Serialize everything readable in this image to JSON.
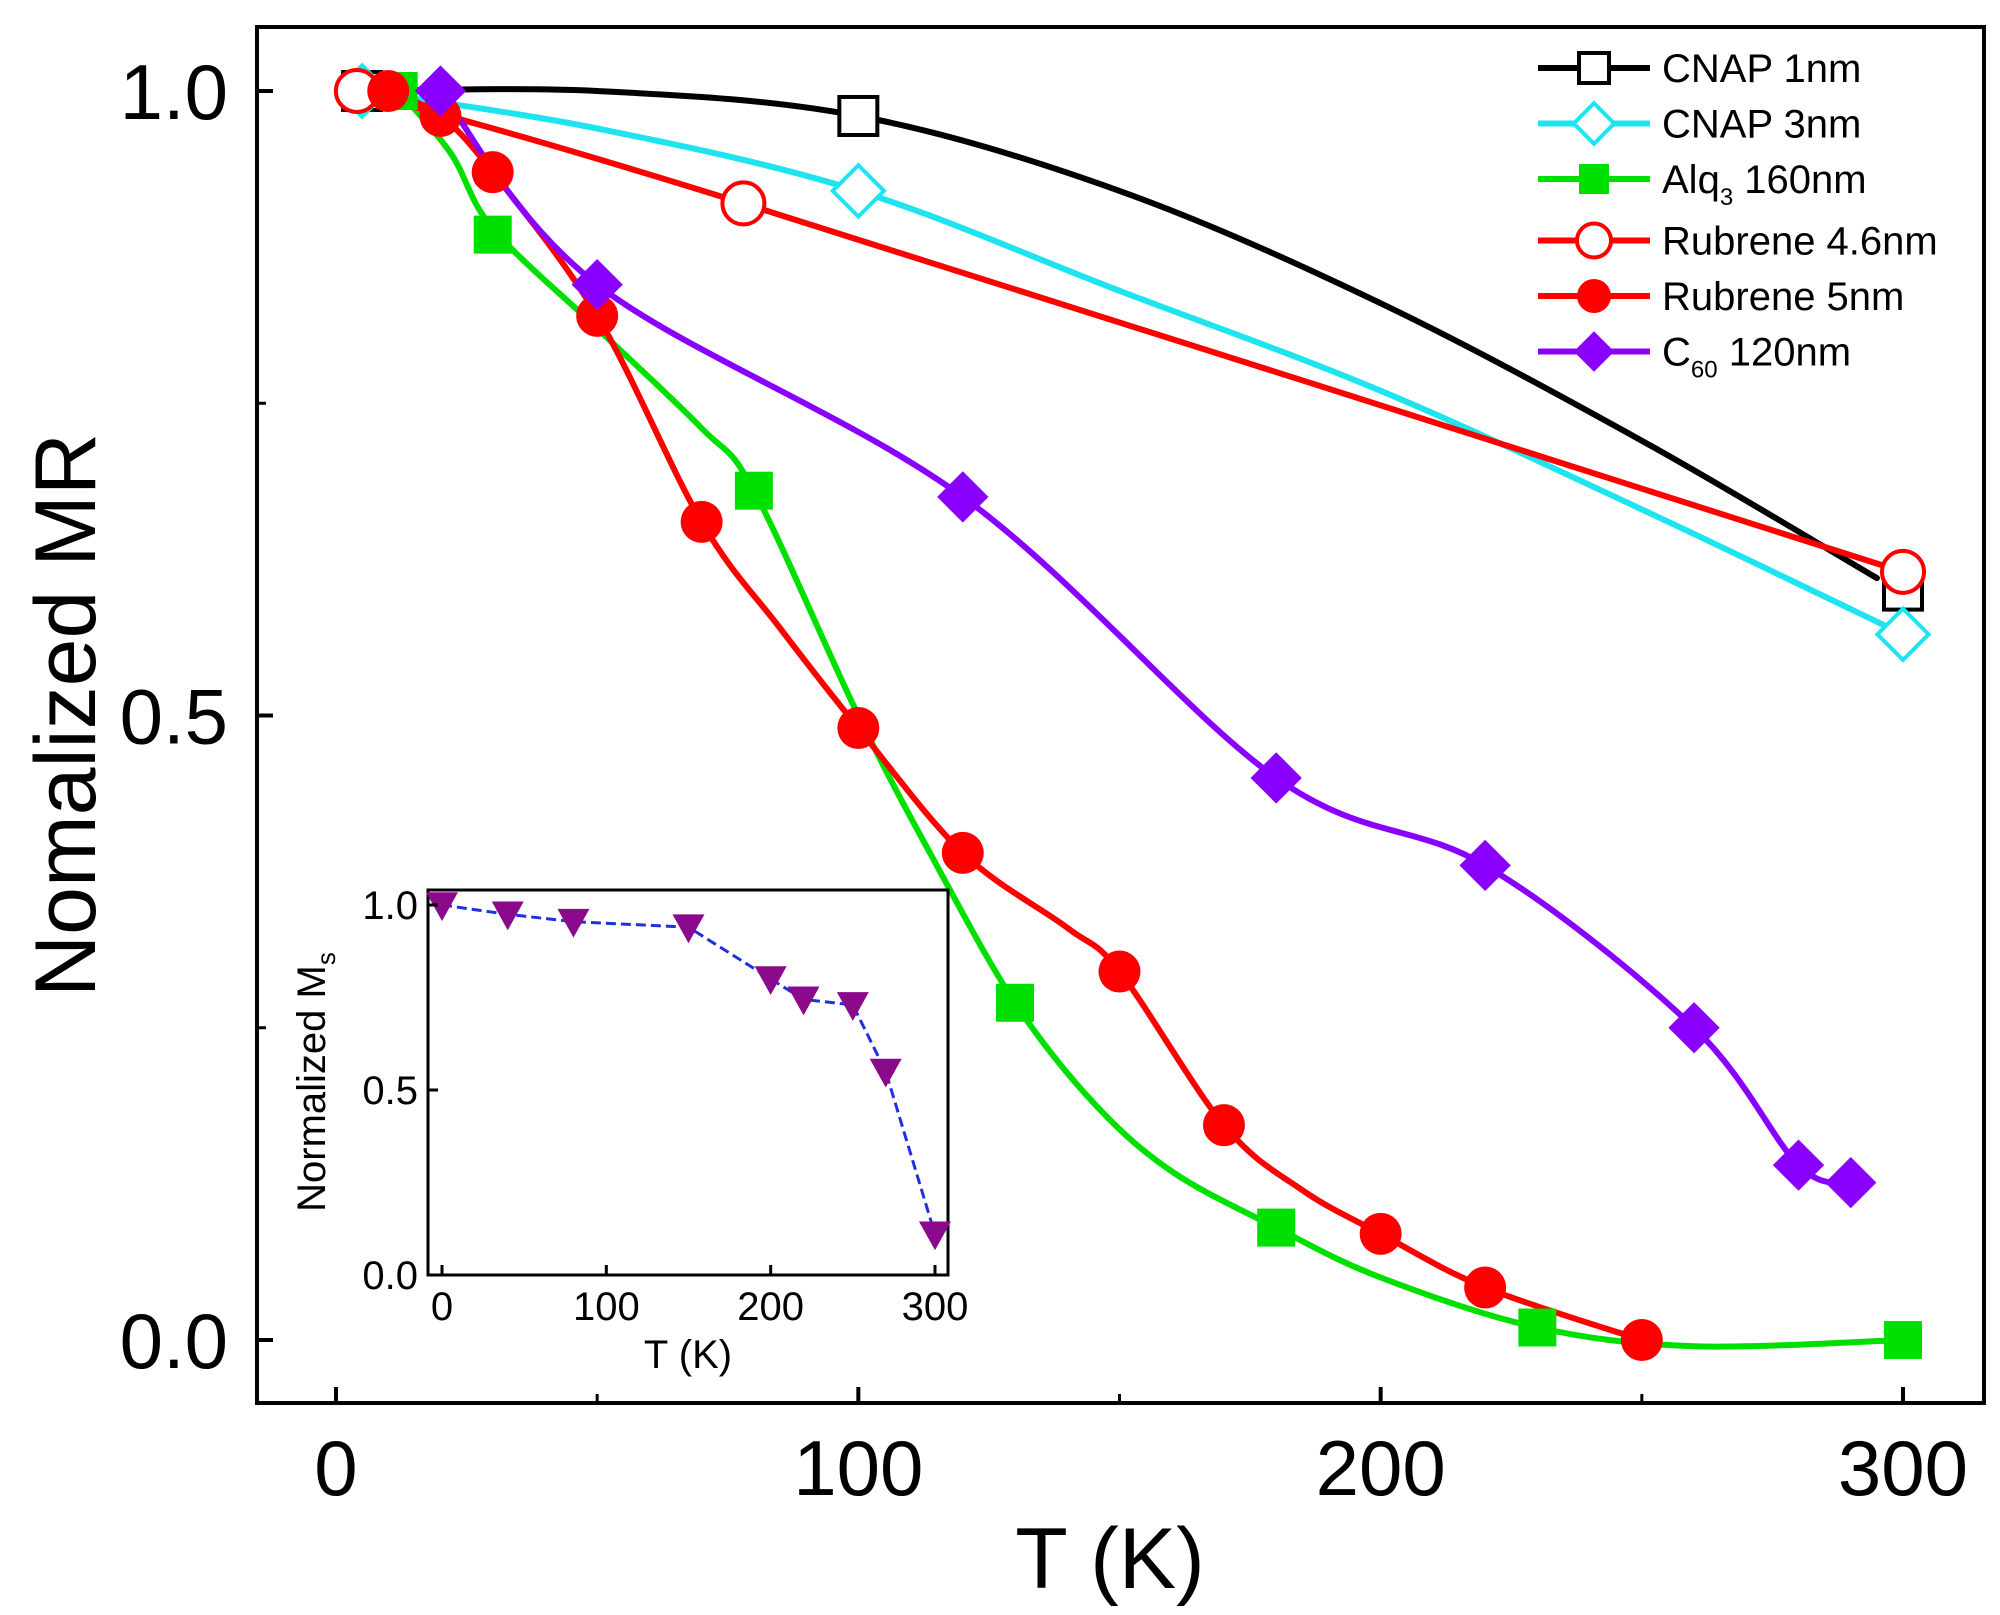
{
  "chart_data": [
    {
      "type": "line",
      "role": "main",
      "title": "",
      "xlabel": "T (K)",
      "ylabel": "Nomalized  MR",
      "xlim": [
        -15,
        315
      ],
      "ylim": [
        -0.05,
        1.05
      ],
      "xticks": [
        0,
        100,
        200,
        300
      ],
      "xtick_labels": [
        "0",
        "100",
        "200",
        "300"
      ],
      "yticks": [
        0.0,
        0.5,
        1.0
      ],
      "ytick_labels": [
        "0.0",
        "0.5",
        "1.0"
      ],
      "grid": false,
      "legend_position": "top-right",
      "series": [
        {
          "name": "CNAP 1nm",
          "legend": {
            "main": "CNAP 1nm",
            "sub": "",
            "rest": ""
          },
          "color": "#000000",
          "marker": "square-open",
          "x": [
            5,
            100,
            300
          ],
          "y": [
            1.0,
            0.98,
            0.6
          ],
          "curve": [
            [
              5,
              1.0
            ],
            [
              50,
              1.0
            ],
            [
              100,
              0.98
            ],
            [
              150,
              0.92
            ],
            [
              200,
              0.83
            ],
            [
              250,
              0.72
            ],
            [
              295,
              0.61
            ]
          ]
        },
        {
          "name": "CNAP 3nm",
          "legend": {
            "main": "CNAP 3nm",
            "sub": "",
            "rest": ""
          },
          "color": "#1ee4f0",
          "marker": "diamond-open",
          "x": [
            5,
            100,
            300
          ],
          "y": [
            1.0,
            0.92,
            0.565
          ],
          "curve": [
            [
              5,
              1.0
            ],
            [
              50,
              0.97
            ],
            [
              100,
              0.92
            ],
            [
              150,
              0.84
            ],
            [
              200,
              0.76
            ],
            [
              250,
              0.665
            ],
            [
              300,
              0.565
            ]
          ]
        },
        {
          "name": "Alq3 160nm",
          "legend": {
            "main": "Alq",
            "sub": "3",
            "rest": " 160nm"
          },
          "color": "#00e000",
          "marker": "square-filled",
          "x": [
            12,
            30,
            80,
            130,
            180,
            230,
            300
          ],
          "y": [
            1.0,
            0.885,
            0.68,
            0.27,
            0.09,
            0.01,
            0.0
          ],
          "curve": [
            [
              12,
              1.0
            ],
            [
              22,
              0.95
            ],
            [
              30,
              0.89
            ],
            [
              50,
              0.81
            ],
            [
              70,
              0.73
            ],
            [
              80,
              0.68
            ],
            [
              100,
              0.5
            ],
            [
              115,
              0.38
            ],
            [
              130,
              0.27
            ],
            [
              145,
              0.19
            ],
            [
              160,
              0.135
            ],
            [
              180,
              0.09
            ],
            [
              200,
              0.05
            ],
            [
              230,
              0.01
            ],
            [
              260,
              -0.005
            ],
            [
              300,
              0.0
            ]
          ]
        },
        {
          "name": "Rubrene 4.6nm",
          "legend": {
            "main": "Rubrene 4.6nm",
            "sub": "",
            "rest": ""
          },
          "color": "#ff0000",
          "marker": "circle-open",
          "x": [
            4,
            78,
            300
          ],
          "y": [
            1.0,
            0.91,
            0.615
          ],
          "curve": [
            [
              4,
              1.0
            ],
            [
              78,
              0.91
            ],
            [
              300,
              0.615
            ]
          ]
        },
        {
          "name": "Rubrene 5nm",
          "legend": {
            "main": "Rubrene 5nm",
            "sub": "",
            "rest": ""
          },
          "color": "#ff0000",
          "marker": "circle-filled",
          "x": [
            10,
            20,
            30,
            50,
            70,
            100,
            120,
            150,
            170,
            200,
            220,
            250
          ],
          "y": [
            1.0,
            0.98,
            0.935,
            0.82,
            0.655,
            0.49,
            0.39,
            0.295,
            0.172,
            0.085,
            0.042,
            0.0
          ],
          "curve": [
            [
              10,
              1.0
            ],
            [
              20,
              0.98
            ],
            [
              30,
              0.935
            ],
            [
              50,
              0.82
            ],
            [
              70,
              0.655
            ],
            [
              85,
              0.57
            ],
            [
              100,
              0.49
            ],
            [
              120,
              0.39
            ],
            [
              140,
              0.33
            ],
            [
              150,
              0.295
            ],
            [
              170,
              0.172
            ],
            [
              185,
              0.12
            ],
            [
              200,
              0.085
            ],
            [
              220,
              0.042
            ],
            [
              250,
              0.0
            ]
          ]
        },
        {
          "name": "C60 120nm",
          "legend": {
            "main": "C",
            "sub": "60",
            "rest": " 120nm"
          },
          "color": "#8a00ff",
          "marker": "diamond-filled",
          "x": [
            20,
            50,
            120,
            180,
            220,
            260,
            280,
            290
          ],
          "y": [
            1.0,
            0.845,
            0.675,
            0.45,
            0.38,
            0.25,
            0.14,
            0.126
          ],
          "curve": [
            [
              20,
              1.0
            ],
            [
              50,
              0.845
            ],
            [
              120,
              0.675
            ],
            [
              180,
              0.45
            ],
            [
              220,
              0.38
            ],
            [
              260,
              0.25
            ],
            [
              280,
              0.14
            ],
            [
              290,
              0.126
            ]
          ]
        }
      ]
    },
    {
      "type": "line",
      "role": "inset",
      "title": "",
      "xlabel": "T (K)",
      "ylabel": {
        "main": "Normalized M",
        "sub": "s"
      },
      "xlim": [
        -10,
        310
      ],
      "ylim": [
        -0.02,
        1.02
      ],
      "xticks": [
        0,
        100,
        200,
        300
      ],
      "xtick_labels": [
        "0",
        "100",
        "200",
        "300"
      ],
      "yticks": [
        0.0,
        0.5,
        1.0
      ],
      "ytick_labels": [
        "0.0",
        "0.5",
        "1.0"
      ],
      "grid": false,
      "series": [
        {
          "name": "Ms",
          "color": "#1f30e0",
          "marker_color": "#8b0a8b",
          "marker": "triangle-down-filled",
          "x": [
            0,
            40,
            80,
            150,
            200,
            220,
            250,
            270,
            300
          ],
          "y": [
            1.0,
            0.975,
            0.955,
            0.94,
            0.8,
            0.745,
            0.73,
            0.55,
            0.11
          ]
        }
      ]
    }
  ]
}
